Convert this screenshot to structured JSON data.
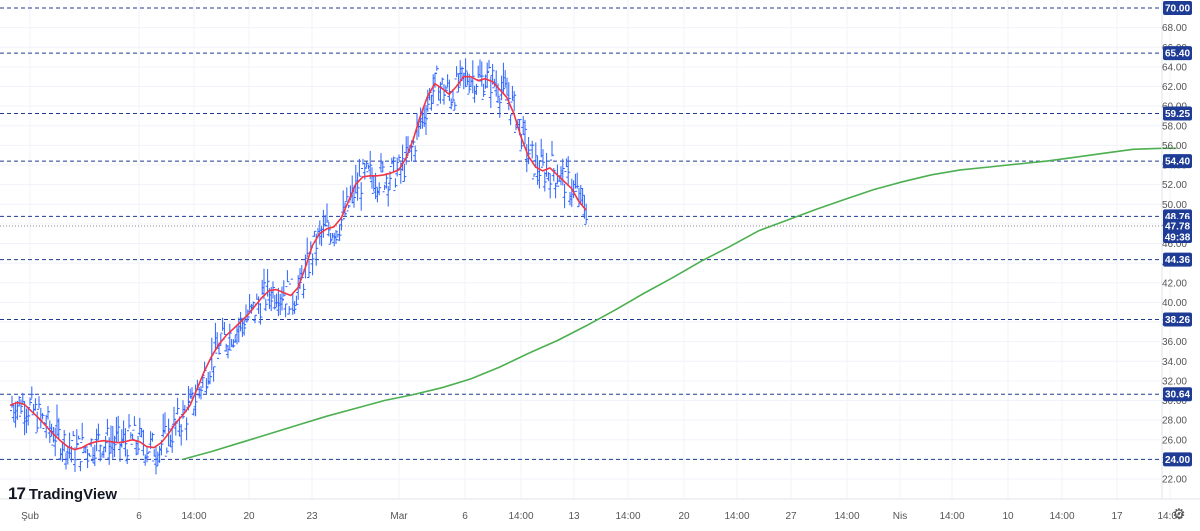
{
  "chart_data": {
    "type": "line",
    "title": "",
    "ylim": [
      22,
      70
    ],
    "y_ticks": [
      "22.00",
      "24.00",
      "26.00",
      "28.00",
      "30.00",
      "32.00",
      "34.00",
      "36.00",
      "38.00",
      "40.00",
      "42.00",
      "44.00",
      "46.00",
      "48.00",
      "50.00",
      "52.00",
      "54.00",
      "56.00",
      "58.00",
      "60.00",
      "62.00",
      "64.00",
      "66.00",
      "68.00"
    ],
    "x_ticks": [
      "Şub",
      "6",
      "14:00",
      "20",
      "23",
      "Mar",
      "6",
      "14:00",
      "13",
      "14:00",
      "20",
      "14:00",
      "27",
      "14:00",
      "Nis",
      "14:00",
      "10",
      "14:00",
      "17",
      "14:00"
    ],
    "levels": [
      70.0,
      65.4,
      59.25,
      54.4,
      48.76,
      44.36,
      38.26,
      30.64,
      24.0
    ],
    "level_labels": [
      "70.00",
      "65.40",
      "59.25",
      "54.40",
      "48.76",
      "44.36",
      "38.26",
      "30.64",
      "24.00"
    ],
    "last_price": 47.78,
    "last_price_label": "47.78",
    "countdown_label": "49:38",
    "series": [
      {
        "values": [
          [
            0,
            29.5
          ],
          [
            1,
            29.8
          ],
          [
            2,
            29.6
          ],
          [
            3,
            28.9
          ],
          [
            4,
            28.2
          ],
          [
            5,
            27.4
          ],
          [
            6,
            26.6
          ],
          [
            7,
            25.9
          ],
          [
            8,
            25.3
          ],
          [
            9,
            25.0
          ],
          [
            10,
            25.2
          ],
          [
            11,
            25.6
          ],
          [
            12,
            25.8
          ],
          [
            13,
            25.9
          ],
          [
            14,
            25.8
          ],
          [
            15,
            25.7
          ],
          [
            16,
            25.8
          ],
          [
            17,
            26.0
          ],
          [
            18,
            25.8
          ],
          [
            19,
            25.3
          ],
          [
            20,
            25.2
          ],
          [
            21,
            25.7
          ],
          [
            22,
            26.6
          ],
          [
            23,
            27.7
          ],
          [
            24,
            28.5
          ],
          [
            25,
            29.5
          ],
          [
            26,
            31.2
          ],
          [
            27,
            33.0
          ],
          [
            28,
            34.5
          ],
          [
            29,
            35.7
          ],
          [
            30,
            36.6
          ],
          [
            31,
            37.3
          ],
          [
            32,
            38.0
          ],
          [
            33,
            38.7
          ],
          [
            34,
            39.6
          ],
          [
            35,
            40.5
          ],
          [
            36,
            41.2
          ],
          [
            37,
            41.3
          ],
          [
            38,
            41.0
          ],
          [
            39,
            40.7
          ],
          [
            40,
            41.5
          ],
          [
            41,
            43.5
          ],
          [
            42,
            45.8
          ],
          [
            43,
            47.0
          ],
          [
            44,
            47.5
          ],
          [
            45,
            47.7
          ],
          [
            46,
            48.6
          ],
          [
            47,
            50.3
          ],
          [
            48,
            52.0
          ],
          [
            49,
            52.8
          ],
          [
            50,
            52.9
          ],
          [
            51,
            52.9
          ],
          [
            52,
            53.0
          ],
          [
            53,
            53.2
          ],
          [
            54,
            53.5
          ],
          [
            55,
            54.7
          ],
          [
            56,
            56.6
          ],
          [
            57,
            59.0
          ],
          [
            58,
            61.0
          ],
          [
            59,
            62.3
          ],
          [
            60,
            61.8
          ],
          [
            61,
            61.2
          ],
          [
            62,
            62.0
          ],
          [
            63,
            63.0
          ],
          [
            64,
            63.0
          ],
          [
            65,
            62.6
          ],
          [
            66,
            62.8
          ],
          [
            67,
            62.5
          ],
          [
            68,
            61.7
          ],
          [
            69,
            60.9
          ],
          [
            70,
            59.2
          ],
          [
            71,
            56.8
          ],
          [
            72,
            54.9
          ],
          [
            73,
            53.8
          ],
          [
            74,
            53.4
          ],
          [
            75,
            53.7
          ],
          [
            76,
            53.0
          ],
          [
            77,
            52.3
          ],
          [
            78,
            51.6
          ],
          [
            79,
            50.3
          ],
          [
            80,
            49.4
          ]
        ]
      },
      {
        "values": [
          [
            0,
            24.0
          ],
          [
            4,
            24.8
          ],
          [
            8,
            25.7
          ],
          [
            12,
            26.6
          ],
          [
            16,
            27.5
          ],
          [
            20,
            28.4
          ],
          [
            24,
            29.2
          ],
          [
            28,
            30.0
          ],
          [
            32,
            30.6
          ],
          [
            36,
            31.3
          ],
          [
            40,
            32.2
          ],
          [
            44,
            33.4
          ],
          [
            48,
            34.8
          ],
          [
            52,
            36.1
          ],
          [
            56,
            37.6
          ],
          [
            60,
            39.2
          ],
          [
            64,
            40.9
          ],
          [
            68,
            42.5
          ],
          [
            72,
            44.2
          ],
          [
            76,
            45.7
          ],
          [
            80,
            47.3
          ],
          [
            84,
            48.4
          ],
          [
            88,
            49.5
          ],
          [
            92,
            50.5
          ],
          [
            96,
            51.5
          ],
          [
            100,
            52.3
          ],
          [
            104,
            53.0
          ],
          [
            108,
            53.5
          ],
          [
            112,
            53.8
          ],
          [
            116,
            54.1
          ],
          [
            120,
            54.4
          ],
          [
            124,
            54.8
          ],
          [
            128,
            55.2
          ],
          [
            132,
            55.6
          ],
          [
            136,
            55.7
          ],
          [
            138,
            55.7
          ]
        ]
      }
    ],
    "colors": {
      "ema_fast": "#f23645",
      "sma_slow": "#4caf50",
      "bars": "#2962ff",
      "levels": "#1e3c96",
      "badge": "#1e3c96",
      "grid": "#f0f3fa"
    }
  },
  "branding": {
    "logo_mark": "17",
    "logo_text": "TradingView"
  },
  "controls": {
    "settings_icon": "gear-icon"
  }
}
